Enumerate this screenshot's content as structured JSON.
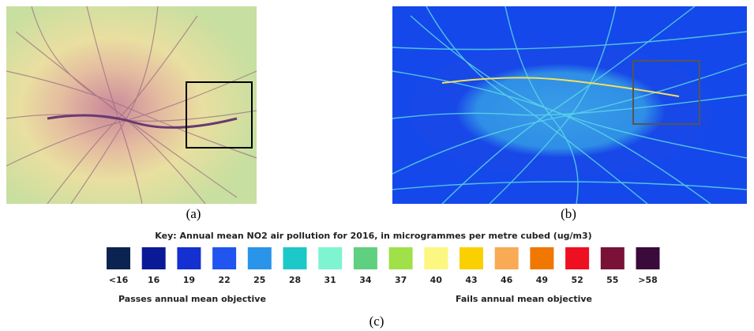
{
  "panels": [
    {
      "label": "(a)"
    },
    {
      "label": "(b)"
    }
  ],
  "key": {
    "title": "Key: Annual mean NO2 air pollution for 2016, in microgrammes per metre cubed (ug/m3)",
    "entries": [
      {
        "label": "<16",
        "color": "#0b2350"
      },
      {
        "label": "16",
        "color": "#0a1a96"
      },
      {
        "label": "19",
        "color": "#1430d0"
      },
      {
        "label": "22",
        "color": "#2155f0"
      },
      {
        "label": "25",
        "color": "#2a94e8"
      },
      {
        "label": "28",
        "color": "#1cc8c8"
      },
      {
        "label": "31",
        "color": "#7ef5d0"
      },
      {
        "label": "34",
        "color": "#5ed080"
      },
      {
        "label": "37",
        "color": "#a0e048"
      },
      {
        "label": "40",
        "color": "#fbf780"
      },
      {
        "label": "43",
        "color": "#fbd000"
      },
      {
        "label": "46",
        "color": "#f8aa55"
      },
      {
        "label": "49",
        "color": "#f07800"
      },
      {
        "label": "52",
        "color": "#ee1020"
      },
      {
        "label": "55",
        "color": "#7a1238"
      },
      {
        "label": ">58",
        "color": "#3a0a3a"
      }
    ],
    "passes": "Passes annual mean objective",
    "fails": "Fails annual mean objective"
  },
  "caption": "(c)"
}
